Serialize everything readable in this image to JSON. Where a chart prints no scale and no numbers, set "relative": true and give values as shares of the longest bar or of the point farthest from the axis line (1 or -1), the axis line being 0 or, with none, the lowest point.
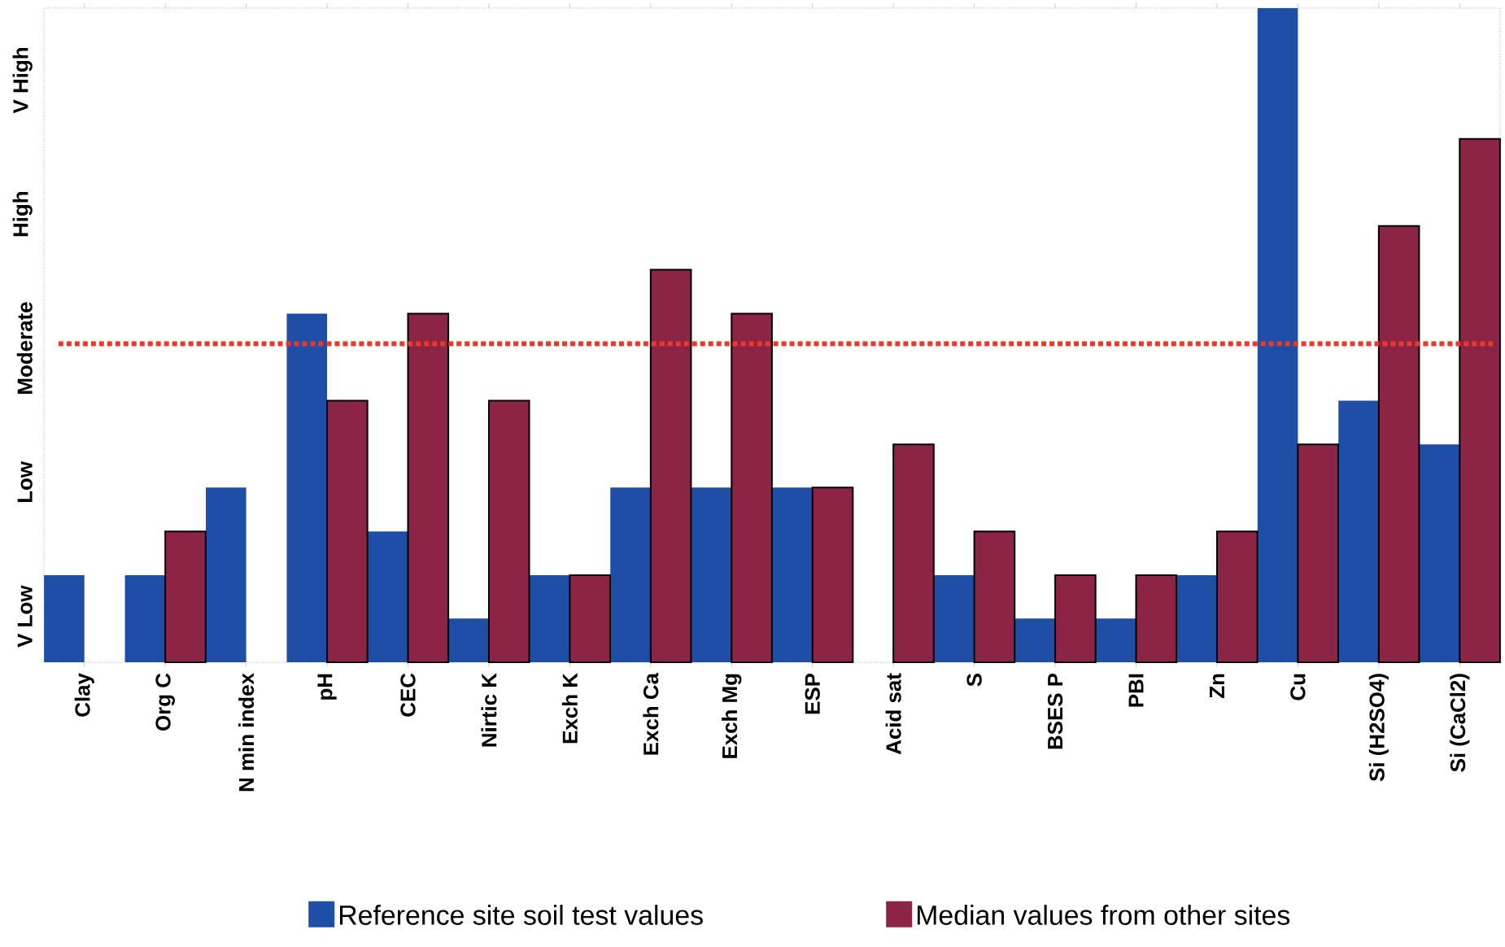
{
  "chart_data": {
    "type": "bar",
    "relative": true,
    "categories": [
      "Clay",
      "Org C",
      "N min index",
      "pH",
      "CEC",
      "Nirtic K",
      "Exch K",
      "Exch Ca",
      "Exch Mg",
      "ESP",
      "Acid sat",
      "S",
      "BSES P",
      "PBI",
      "Zn",
      "Cu",
      "Si (H2SO4)",
      "Si (CaCl2)"
    ],
    "series": [
      {
        "name": "Reference site soil test values",
        "color": "#1f4ea6",
        "values": [
          0.133,
          0.133,
          0.267,
          0.533,
          0.2,
          0.067,
          0.133,
          0.267,
          0.267,
          0.267,
          null,
          0.133,
          0.067,
          0.067,
          0.133,
          1,
          0.4,
          0.333
        ]
      },
      {
        "name": "Median values from other sites",
        "color": "#8c2446",
        "values": [
          null,
          0.2,
          null,
          0.4,
          0.533,
          0.4,
          0.133,
          0.6,
          0.533,
          0.267,
          0.333,
          0.2,
          0.133,
          0.133,
          0.2,
          0.333,
          0.667,
          0.8
        ]
      }
    ],
    "annotations": [
      "V Low",
      "Low",
      "Moderate",
      "High",
      "V High"
    ],
    "ref_lines": [
      {
        "axis": "y",
        "value": 0.487,
        "color": "#e8392a",
        "line_style": "dotted"
      }
    ],
    "grid": false,
    "legend": "bottom"
  }
}
